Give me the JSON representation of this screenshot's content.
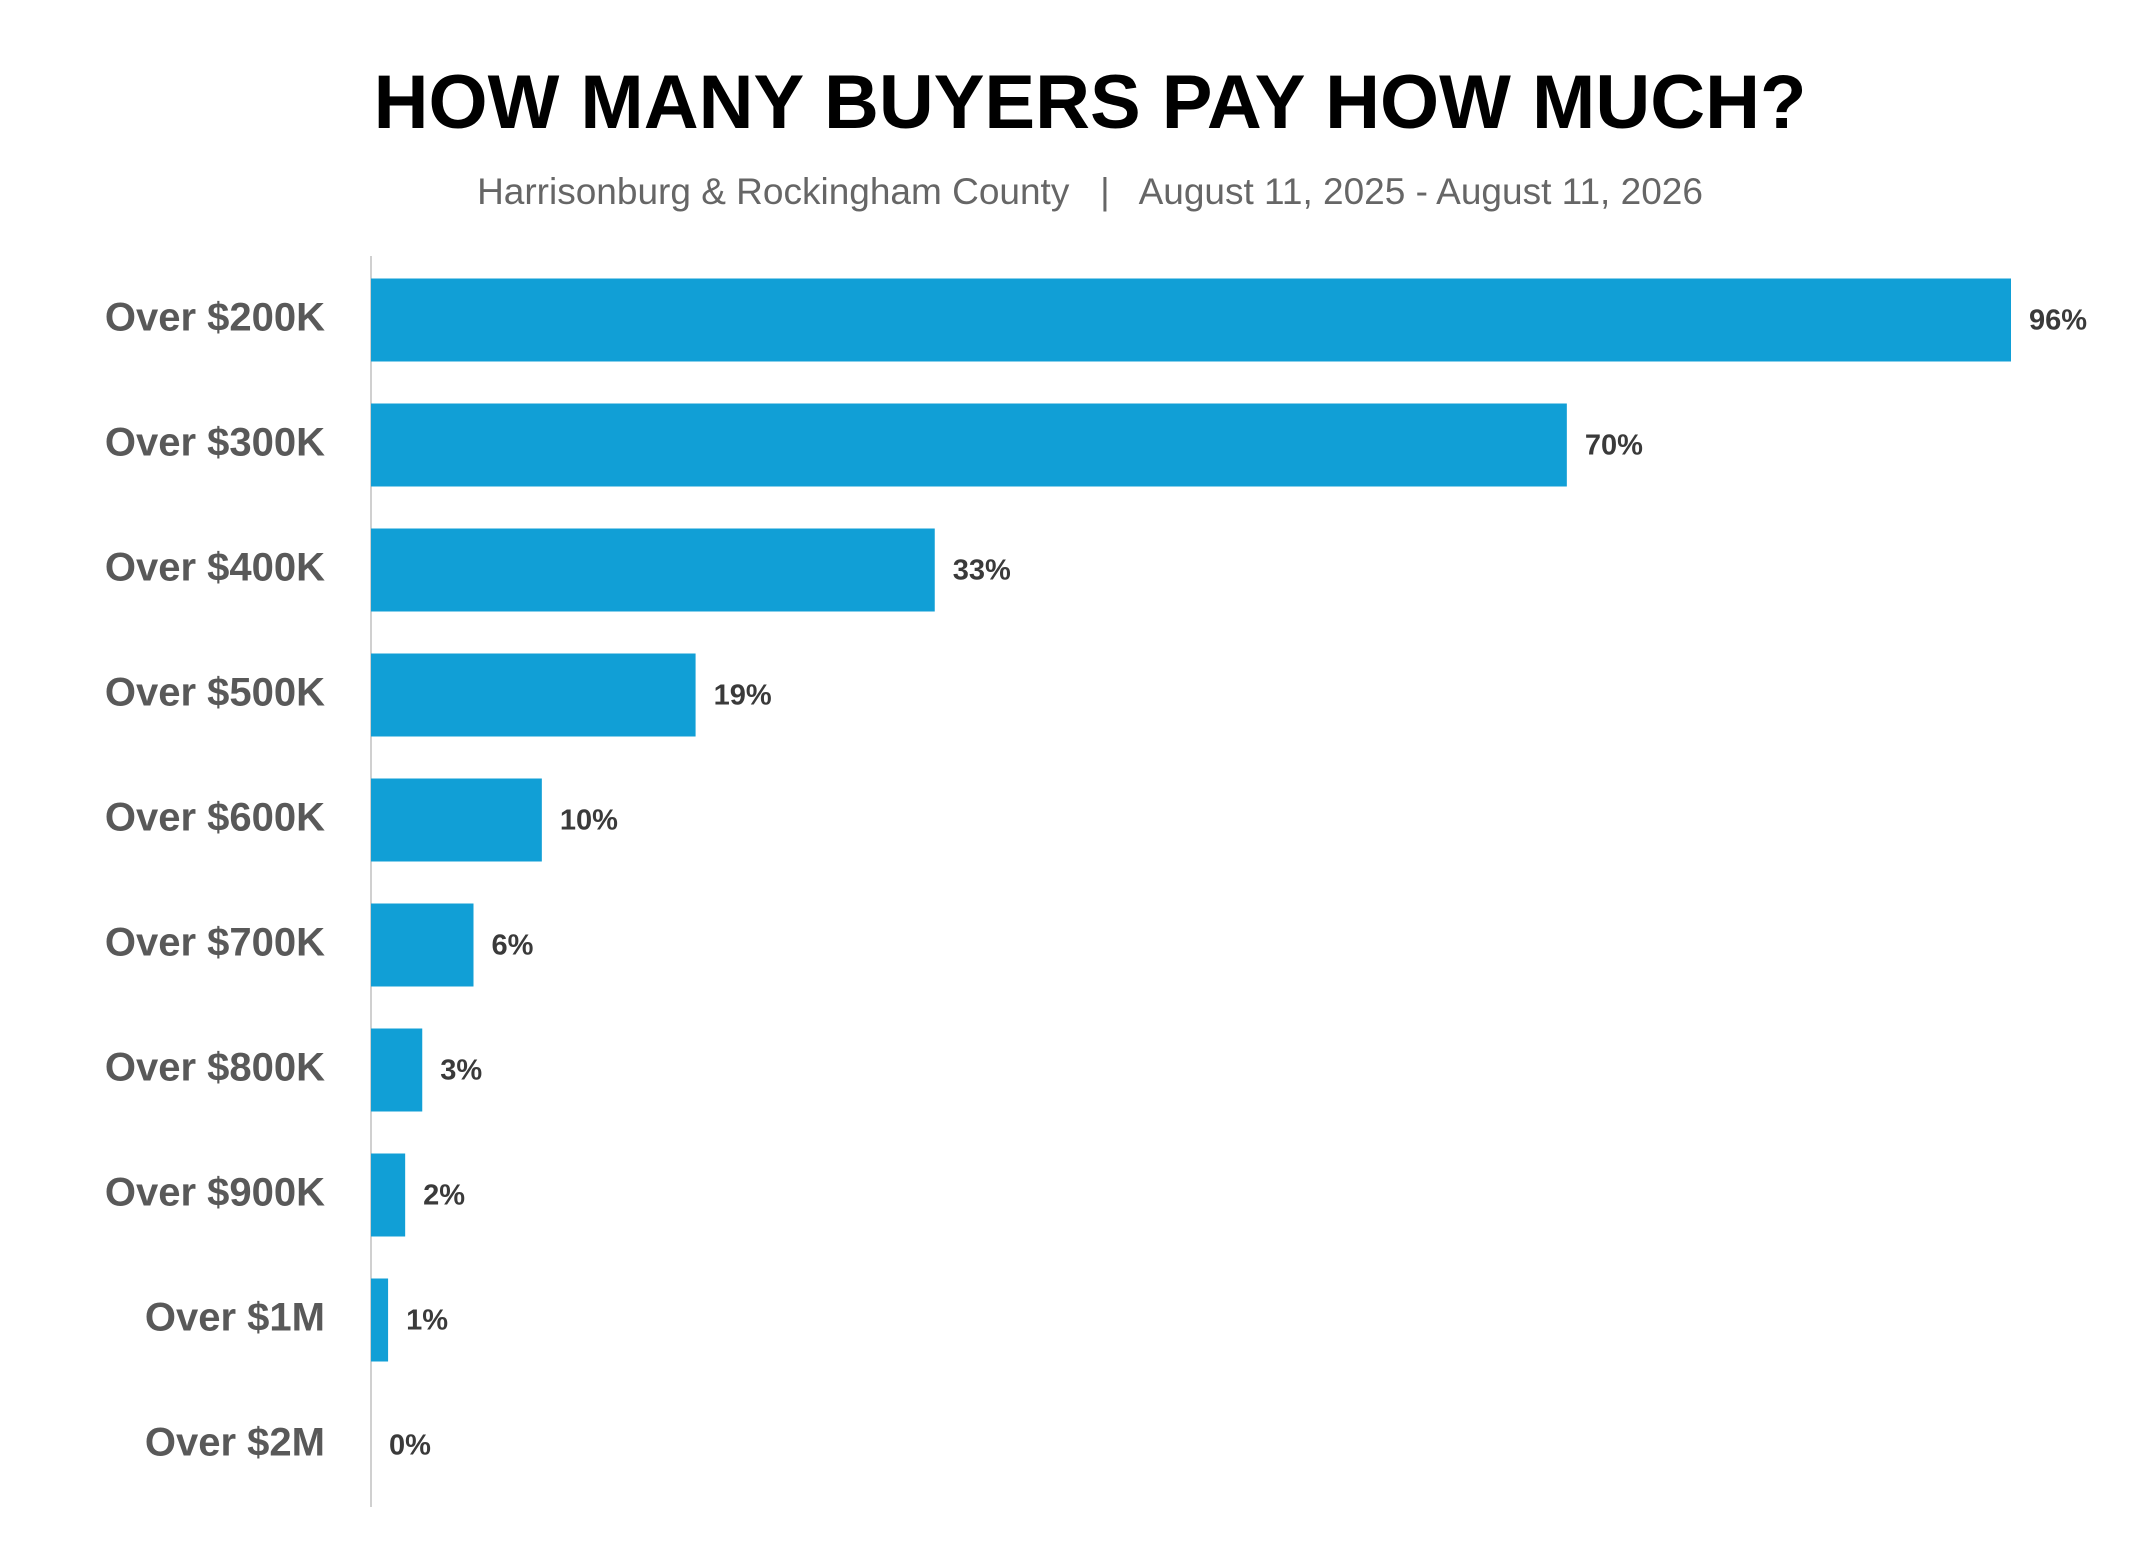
{
  "chart_data": {
    "type": "bar",
    "orientation": "horizontal",
    "title": "HOW MANY BUYERS PAY HOW MUCH?",
    "subtitle": "Harrisonburg & Rockingham County   |   August 11, 2025 - August 11, 2026",
    "categories": [
      "Over $200K",
      "Over $300K",
      "Over $400K",
      "Over $500K",
      "Over $600K",
      "Over $700K",
      "Over $800K",
      "Over $900K",
      "Over $1M",
      "Over $2M"
    ],
    "values": [
      96,
      70,
      33,
      19,
      10,
      6,
      3,
      2,
      1,
      0
    ],
    "value_labels": [
      "96%",
      "70%",
      "33%",
      "19%",
      "10%",
      "6%",
      "3%",
      "2%",
      "1%",
      "0%"
    ],
    "color": "#119fd6"
  }
}
